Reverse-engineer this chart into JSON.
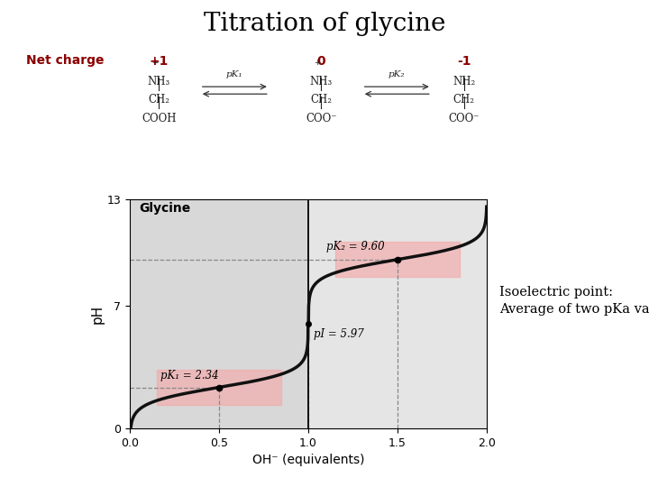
{
  "title": "Titration of glycine",
  "title_fontsize": 20,
  "net_charge_label": "Net charge",
  "net_charges": [
    "+1",
    "0",
    "-1"
  ],
  "net_charge_color": "#8B0000",
  "pka1": 2.34,
  "pka2": 9.6,
  "pI": 5.97,
  "xlabel": "OH⁻ (equivalents)",
  "ylabel": "pH",
  "xlim": [
    0,
    2
  ],
  "ylim": [
    0,
    13
  ],
  "xticks": [
    0,
    0.5,
    1,
    1.5,
    2
  ],
  "yticks": [
    0,
    7,
    13
  ],
  "curve_color": "#111111",
  "curve_lw": 2.5,
  "bg_left_color": "#D8D8D8",
  "bg_right_color": "#E5E5E5",
  "pink_color": "#F4AAAA",
  "dashed_color": "#888888",
  "label_glycine": "Glycine",
  "annotation_pka1": "pK₁ = 2.34",
  "annotation_pka2": "pK₂ = 9.60",
  "annotation_pI": "pI = 5.97",
  "isoelectric_text1": "Isoelectric point:",
  "isoelectric_text2": "Average of two pKa values"
}
